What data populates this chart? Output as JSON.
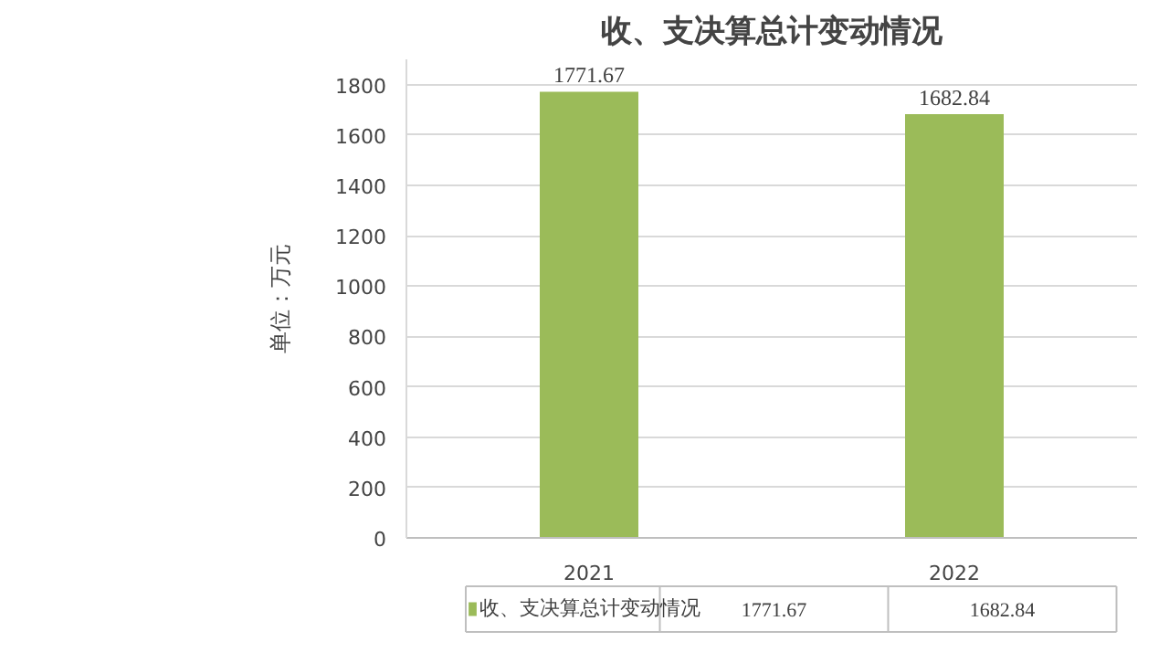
{
  "chart_data": {
    "type": "bar",
    "title": "收、支决算总计变动情况",
    "ylabel": "单位：万元",
    "categories": [
      "2021",
      "2022"
    ],
    "series": [
      {
        "name": "收、支决算总计变动情况",
        "color": "#9bbb59",
        "values": [
          1771.67,
          1682.84
        ],
        "value_labels": [
          "1771.67",
          "1682.84"
        ]
      }
    ],
    "ylim": [
      0,
      1900
    ],
    "yticks": [
      0,
      200,
      400,
      600,
      800,
      1000,
      1200,
      1400,
      1600,
      1800
    ],
    "grid": "y",
    "legend": "bottom",
    "annotations": [
      "1771.67",
      "1682.84"
    ]
  }
}
